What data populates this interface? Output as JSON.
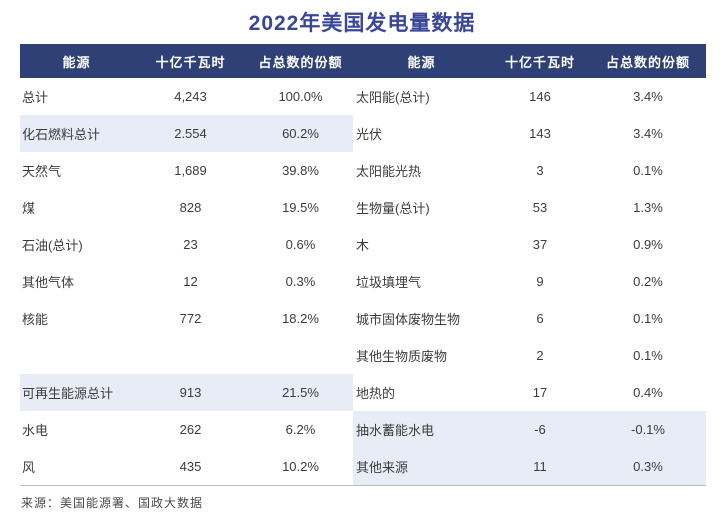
{
  "title": "2022年美国发电量数据",
  "source": "来源：美国能源署、国政大数据",
  "colors": {
    "header_bg": "#2E4075",
    "header_text": "#FFFFFF",
    "title_text": "#3A4799",
    "highlight_bg": "#E8ECF6",
    "body_text": "#3C3C3C"
  },
  "table": {
    "headers": [
      "能源",
      "十亿千瓦时",
      "占总数的份额",
      "能源",
      "十亿千瓦时",
      "占总数的份额"
    ],
    "left_rows": [
      {
        "label": "总计",
        "value": "4,243",
        "share": "100.0%",
        "highlight": false
      },
      {
        "label": "化石燃料总计",
        "value": "2.554",
        "share": "60.2%",
        "highlight": true
      },
      {
        "label": "天然气",
        "value": "1,689",
        "share": "39.8%",
        "highlight": false
      },
      {
        "label": "煤",
        "value": "828",
        "share": "19.5%",
        "highlight": false
      },
      {
        "label": "石油(总计)",
        "value": "23",
        "share": "0.6%",
        "highlight": false
      },
      {
        "label": "其他气体",
        "value": "12",
        "share": "0.3%",
        "highlight": false
      },
      {
        "label": "核能",
        "value": "772",
        "share": "18.2%",
        "highlight": false
      },
      {
        "label": "",
        "value": "",
        "share": "",
        "highlight": false
      },
      {
        "label": "可再生能源总计",
        "value": "913",
        "share": "21.5%",
        "highlight": true
      },
      {
        "label": "水电",
        "value": "262",
        "share": "6.2%",
        "highlight": false
      },
      {
        "label": "风",
        "value": "435",
        "share": "10.2%",
        "highlight": false
      }
    ],
    "right_rows": [
      {
        "label": "太阳能(总计)",
        "value": "146",
        "share": "3.4%",
        "highlight": false
      },
      {
        "label": "光伏",
        "value": "143",
        "share": "3.4%",
        "highlight": false
      },
      {
        "label": "太阳能光热",
        "value": "3",
        "share": "0.1%",
        "highlight": false
      },
      {
        "label": "生物量(总计)",
        "value": "53",
        "share": "1.3%",
        "highlight": false
      },
      {
        "label": "木",
        "value": "37",
        "share": "0.9%",
        "highlight": false
      },
      {
        "label": "垃圾填埋气",
        "value": "9",
        "share": "0.2%",
        "highlight": false
      },
      {
        "label": "城市固体废物生物",
        "value": "6",
        "share": "0.1%",
        "highlight": false
      },
      {
        "label": "其他生物质废物",
        "value": "2",
        "share": "0.1%",
        "highlight": false
      },
      {
        "label": "地热的",
        "value": "17",
        "share": "0.4%",
        "highlight": false
      },
      {
        "label": "抽水蓄能水电",
        "value": "-6",
        "share": "-0.1%",
        "highlight": true
      },
      {
        "label": "其他来源",
        "value": "11",
        "share": "0.3%",
        "highlight": true
      }
    ]
  },
  "chart_data": {
    "type": "table",
    "title": "2022年美国发电量数据",
    "columns": [
      "能源",
      "十亿千瓦时",
      "占总数的份额"
    ],
    "rows": [
      [
        "总计",
        4243,
        "100.0%"
      ],
      [
        "化石燃料总计",
        2554,
        "60.2%"
      ],
      [
        "天然气",
        1689,
        "39.8%"
      ],
      [
        "煤",
        828,
        "19.5%"
      ],
      [
        "石油(总计)",
        23,
        "0.6%"
      ],
      [
        "其他气体",
        12,
        "0.3%"
      ],
      [
        "核能",
        772,
        "18.2%"
      ],
      [
        "可再生能源总计",
        913,
        "21.5%"
      ],
      [
        "水电",
        262,
        "6.2%"
      ],
      [
        "风",
        435,
        "10.2%"
      ],
      [
        "太阳能(总计)",
        146,
        "3.4%"
      ],
      [
        "光伏",
        143,
        "3.4%"
      ],
      [
        "太阳能光热",
        3,
        "0.1%"
      ],
      [
        "生物量(总计)",
        53,
        "1.3%"
      ],
      [
        "木",
        37,
        "0.9%"
      ],
      [
        "垃圾填埋气",
        9,
        "0.2%"
      ],
      [
        "城市固体废物生物",
        6,
        "0.1%"
      ],
      [
        "其他生物质废物",
        2,
        "0.1%"
      ],
      [
        "地热的",
        17,
        "0.4%"
      ],
      [
        "抽水蓄能水电",
        -6,
        "-0.1%"
      ],
      [
        "其他来源",
        11,
        "0.3%"
      ]
    ],
    "source": "来源：美国能源署、国政大数据",
    "layout": "two side-by-side panels sharing one header bar; highlighted rows: 化石燃料总计, 可再生能源总计, 抽水蓄能水电, 其他来源"
  }
}
